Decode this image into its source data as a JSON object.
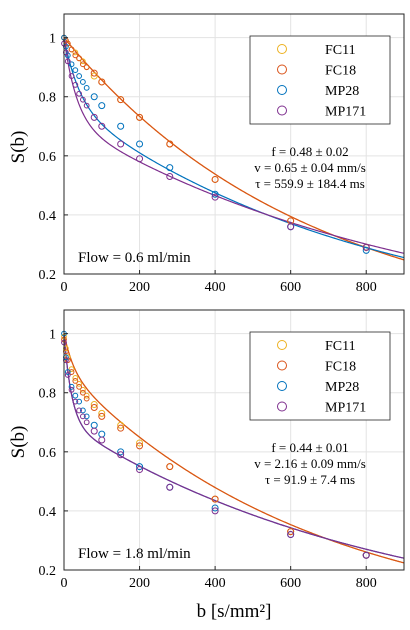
{
  "chart_data": {
    "type": "scatter",
    "shared_xlabel_var": "b",
    "shared_xlabel_unit": "[s/mm²]",
    "ylabel_func": "S",
    "ylabel_arg": "b",
    "legend_placement": "top-right",
    "grid": true,
    "xlim": [
      0,
      900
    ],
    "xticks": [
      0,
      200,
      400,
      600,
      800
    ],
    "series_colors": {
      "FC11": "#EDB120",
      "FC18": "#D95319",
      "MP28": "#0072BD",
      "MP171": "#7E2F8E"
    },
    "panels": [
      {
        "ylim": [
          0.2,
          1.08
        ],
        "yticks": [
          0.2,
          0.4,
          0.6,
          0.8,
          1
        ],
        "annotation": "Flow = 0.6 ml/min",
        "params": {
          "f": "f = 0.48 ± 0.02",
          "v": "v = 0.65 ± 0.04 mm/s",
          "tau": "τ = 559.9 ± 184.4 ms"
        },
        "legend": [
          "FC11",
          "FC18",
          "MP28",
          "MP171"
        ],
        "series": [
          {
            "name": "FC11",
            "x": [
              0,
              5,
              10,
              20,
              30,
              40,
              50,
              60,
              80,
              100,
              150,
              200,
              280,
              400,
              600,
              800
            ],
            "y": [
              1.0,
              0.99,
              0.98,
              0.96,
              0.95,
              0.93,
              0.92,
              0.9,
              0.87,
              0.85,
              0.79,
              0.73,
              0.64,
              0.52,
              0.38,
              0.29
            ]
          },
          {
            "name": "FC18",
            "x": [
              0,
              5,
              10,
              20,
              30,
              40,
              50,
              60,
              80,
              100,
              150,
              200,
              280,
              400,
              600,
              800
            ],
            "y": [
              1.0,
              0.99,
              0.98,
              0.96,
              0.94,
              0.93,
              0.91,
              0.9,
              0.88,
              0.85,
              0.79,
              0.73,
              0.64,
              0.52,
              0.38,
              0.29
            ]
          },
          {
            "name": "MP28",
            "x": [
              0,
              5,
              10,
              20,
              30,
              40,
              50,
              60,
              80,
              100,
              150,
              200,
              280,
              400,
              600,
              800
            ],
            "y": [
              1.0,
              0.97,
              0.94,
              0.91,
              0.89,
              0.87,
              0.85,
              0.83,
              0.8,
              0.77,
              0.7,
              0.64,
              0.56,
              0.47,
              0.36,
              0.28
            ]
          },
          {
            "name": "MP171",
            "x": [
              0,
              5,
              10,
              20,
              30,
              40,
              50,
              60,
              80,
              100,
              150,
              200,
              280,
              400,
              600,
              800
            ],
            "y": [
              0.98,
              0.95,
              0.92,
              0.87,
              0.84,
              0.81,
              0.79,
              0.77,
              0.73,
              0.7,
              0.64,
              0.59,
              0.53,
              0.46,
              0.36,
              0.29
            ]
          }
        ],
        "fits": [
          {
            "name": "FC11",
            "S0": 1.0,
            "k": 0.00155
          },
          {
            "name": "FC18",
            "S0": 1.0,
            "k": 0.00155
          },
          {
            "name": "MP28",
            "f": 0.22,
            "a": 0.025,
            "D": 0.00124
          },
          {
            "name": "MP171",
            "f": 0.28,
            "a": 0.03,
            "D": 0.00109
          }
        ]
      },
      {
        "ylim": [
          0.2,
          1.08
        ],
        "yticks": [
          0.2,
          0.4,
          0.6,
          0.8,
          1
        ],
        "annotation": "Flow = 1.8 ml/min",
        "params": {
          "f": "f = 0.44 ± 0.01",
          "v": "v = 2.16 ± 0.09 mm/s",
          "tau": "τ = 91.9 ± 7.4 ms"
        },
        "legend": [
          "FC11",
          "FC18",
          "MP28",
          "MP171"
        ],
        "series": [
          {
            "name": "FC11",
            "x": [
              0,
              5,
              10,
              20,
              30,
              40,
              50,
              60,
              80,
              100,
              150,
              200,
              280,
              400,
              600,
              800
            ],
            "y": [
              0.99,
              0.95,
              0.92,
              0.88,
              0.85,
              0.83,
              0.81,
              0.79,
              0.76,
              0.73,
              0.69,
              0.63,
              0.55,
              0.44,
              0.33,
              0.25
            ]
          },
          {
            "name": "FC18",
            "x": [
              0,
              5,
              10,
              20,
              30,
              40,
              50,
              60,
              80,
              100,
              150,
              200,
              280,
              400,
              600,
              800
            ],
            "y": [
              0.98,
              0.94,
              0.91,
              0.87,
              0.84,
              0.82,
              0.8,
              0.78,
              0.75,
              0.72,
              0.68,
              0.62,
              0.55,
              0.44,
              0.33,
              0.25
            ]
          },
          {
            "name": "MP28",
            "x": [
              0,
              5,
              10,
              20,
              30,
              40,
              50,
              60,
              80,
              100,
              150,
              200,
              280,
              400,
              600,
              800
            ],
            "y": [
              1.0,
              0.92,
              0.87,
              0.82,
              0.79,
              0.77,
              0.74,
              0.72,
              0.69,
              0.66,
              0.6,
              0.55,
              0.48,
              0.41,
              0.32,
              0.25
            ]
          },
          {
            "name": "MP171",
            "x": [
              0,
              5,
              10,
              20,
              30,
              40,
              50,
              60,
              80,
              100,
              150,
              200,
              280,
              400,
              600,
              800
            ],
            "y": [
              0.97,
              0.91,
              0.86,
              0.81,
              0.77,
              0.74,
              0.72,
              0.7,
              0.67,
              0.64,
              0.59,
              0.54,
              0.48,
              0.4,
              0.32,
              0.25
            ]
          }
        ],
        "fits": [
          {
            "name": "FC11",
            "f": 0.12,
            "a": 0.04,
            "D": 0.00152
          },
          {
            "name": "FC18",
            "f": 0.12,
            "a": 0.04,
            "D": 0.00152
          },
          {
            "name": "MP28",
            "f": 0.3,
            "a": 0.05,
            "D": 0.00119
          },
          {
            "name": "MP171",
            "f": 0.3,
            "a": 0.05,
            "D": 0.00119
          }
        ]
      }
    ]
  }
}
